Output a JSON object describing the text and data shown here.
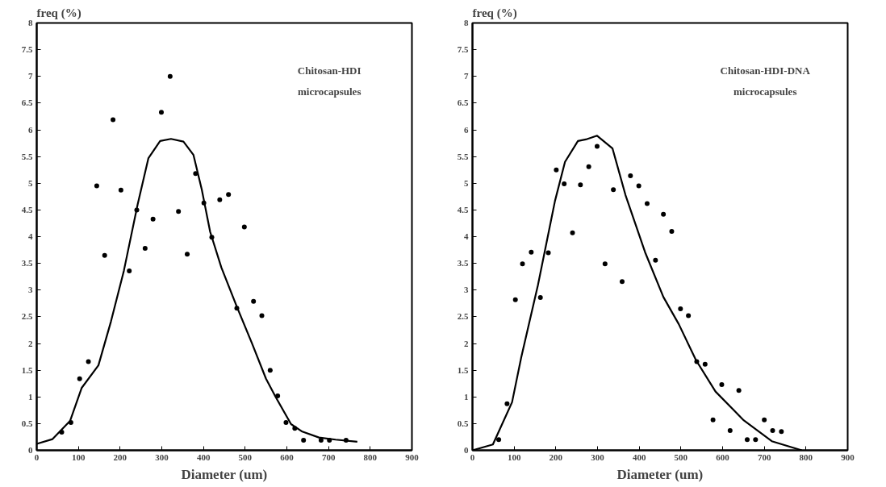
{
  "chart_data": [
    {
      "type": "scatter",
      "ylabel": "freq (%)",
      "xlabel": "Diameter (um)",
      "annotations": [
        "Chitosan-HDI\nmicrocapsules"
      ],
      "xlim": [
        0,
        900
      ],
      "ylim": [
        0,
        8
      ],
      "xticks": [
        0,
        100,
        200,
        300,
        400,
        500,
        600,
        700,
        800,
        900
      ],
      "yticks": [
        0,
        0.5,
        1,
        1.5,
        2,
        2.5,
        3,
        3.5,
        4,
        4.5,
        5,
        5.5,
        6,
        6.5,
        7,
        7.5,
        8
      ],
      "grid": false,
      "series": [
        {
          "marker": "circle",
          "color": "#000000",
          "x": [
            60,
            82,
            103,
            124,
            144,
            163,
            183,
            202,
            222,
            240,
            260,
            279,
            299,
            320,
            340,
            361,
            381,
            401,
            420,
            439,
            460,
            480,
            498,
            520,
            540,
            560,
            578,
            598,
            619,
            640,
            682,
            702,
            742
          ],
          "values": [
            0.34,
            0.52,
            1.34,
            1.66,
            4.95,
            3.65,
            6.19,
            4.87,
            3.36,
            4.5,
            3.78,
            4.33,
            6.33,
            7.0,
            4.47,
            3.67,
            5.18,
            4.63,
            3.99,
            4.69,
            4.79,
            2.66,
            4.18,
            2.79,
            2.52,
            1.5,
            1.02,
            0.52,
            0.41,
            0.19,
            0.19,
            0.19,
            0.19
          ]
        },
        {
          "type": "line",
          "color": "#000000",
          "line_style": "solid",
          "x": [
            0,
            38,
            80,
            108,
            148,
            178,
            209,
            242,
            268,
            296,
            322,
            352,
            376,
            396,
            416,
            443,
            480,
            516,
            550,
            573,
            610,
            637,
            677,
            717,
            769
          ],
          "values": [
            0.12,
            0.21,
            0.55,
            1.17,
            1.59,
            2.41,
            3.36,
            4.6,
            5.47,
            5.79,
            5.83,
            5.78,
            5.53,
            4.88,
            4.09,
            3.42,
            2.69,
            2.01,
            1.34,
            1.0,
            0.49,
            0.35,
            0.24,
            0.2,
            0.16
          ]
        }
      ]
    },
    {
      "type": "scatter",
      "ylabel": "freq (%)",
      "xlabel": "Diameter (um)",
      "annotations": [
        "Chitosan-HDI-DNA\nmicrocapsules"
      ],
      "xlim": [
        0,
        900
      ],
      "ylim": [
        0,
        8
      ],
      "xticks": [
        0,
        100,
        200,
        300,
        400,
        500,
        600,
        700,
        800,
        900
      ],
      "yticks": [
        0,
        0.5,
        1,
        1.5,
        2,
        2.5,
        3,
        3.5,
        4,
        4.5,
        5,
        5.5,
        6,
        6.5,
        7,
        7.5,
        8
      ],
      "grid": false,
      "series": [
        {
          "marker": "circle",
          "color": "#000000",
          "x": [
            63,
            83,
            103,
            120,
            141,
            163,
            182,
            201,
            220,
            240,
            259,
            279,
            299,
            318,
            338,
            359,
            379,
            399,
            419,
            439,
            458,
            478,
            499,
            518,
            538,
            558,
            577,
            598,
            618,
            639,
            659,
            679,
            700,
            720,
            741
          ],
          "values": [
            0.2,
            0.87,
            2.82,
            3.49,
            3.71,
            2.86,
            3.7,
            5.25,
            4.99,
            4.07,
            4.97,
            5.31,
            5.69,
            3.49,
            4.88,
            3.16,
            5.14,
            4.95,
            4.62,
            3.56,
            4.42,
            4.1,
            2.65,
            2.52,
            1.66,
            1.61,
            0.57,
            1.23,
            0.37,
            1.12,
            0.2,
            0.2,
            0.57,
            0.37,
            0.35
          ]
        },
        {
          "type": "line",
          "color": "#000000",
          "line_style": "solid",
          "x": [
            0,
            49,
            95,
            117,
            157,
            198,
            222,
            253,
            272,
            299,
            336,
            367,
            414,
            458,
            495,
            536,
            583,
            651,
            718,
            790
          ],
          "values": [
            0,
            0.11,
            0.9,
            1.74,
            3.09,
            4.67,
            5.4,
            5.79,
            5.82,
            5.89,
            5.65,
            4.78,
            3.71,
            2.87,
            2.36,
            1.69,
            1.1,
            0.56,
            0.17,
            0
          ]
        }
      ]
    }
  ]
}
